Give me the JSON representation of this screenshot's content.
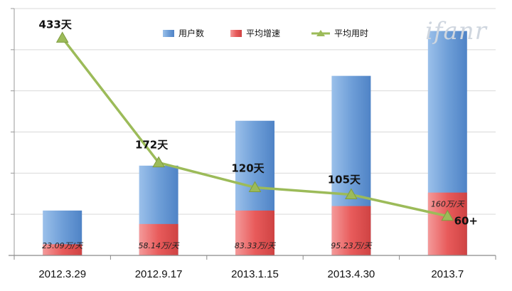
{
  "watermark": "ifanr",
  "chart_data": {
    "type": "bar",
    "categories": [
      "2012.3.29",
      "2012.9.17",
      "2013.1.15",
      "2013.4.30",
      "2013.7"
    ],
    "series": [
      {
        "name": "用户数",
        "type": "bar",
        "color": "#6f9fd8",
        "values": [
          1,
          2,
          3,
          4,
          5
        ]
      },
      {
        "name": "平均增速",
        "type": "bar",
        "color": "#e85b5b",
        "values": [
          0.25,
          0.7,
          1.0,
          1.1,
          1.4
        ],
        "labels": [
          "23.09万/天",
          "58.14万/天",
          "83.33万/天",
          "95.23万/天",
          "160万/天"
        ]
      },
      {
        "name": "平均用时",
        "type": "line",
        "color": "#9cbb59",
        "values": [
          433,
          172,
          120,
          105,
          60
        ],
        "labels": [
          "433天",
          "172天",
          "120天",
          "105天",
          "60+"
        ]
      }
    ],
    "legend_position": "top-center",
    "grid": true,
    "ylim": [
      0,
      5.5
    ]
  }
}
